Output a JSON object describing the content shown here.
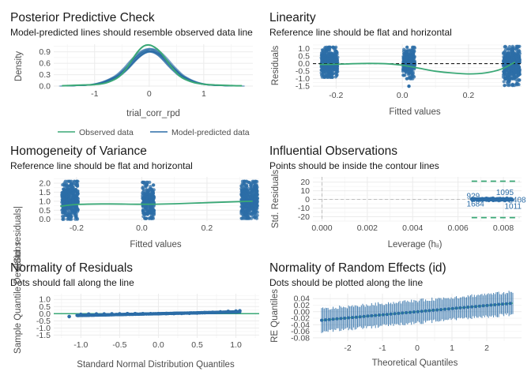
{
  "colors": {
    "blue": "#2c6da7",
    "green": "#3aa876",
    "grid": "#ebebeb",
    "text": "#4d4d4d",
    "contour": "#3aa876"
  },
  "chart_data": [
    {
      "id": "ppc",
      "type": "line",
      "title": "Posterior Predictive Check",
      "subtitle": "Model-predicted lines should resemble observed data line",
      "xlabel": "trial_corr_rpd",
      "ylabel": "Density",
      "xlim": [
        -1.75,
        1.9
      ],
      "ylim": [
        -0.02,
        1.1
      ],
      "xticks": [
        -1,
        0,
        1
      ],
      "yticks": [
        0.0,
        0.3,
        0.6,
        0.9
      ],
      "ytick_labels": [
        "0.0",
        "0.3",
        "0.6",
        "0.9"
      ],
      "grid": true,
      "legend_position": "bottom",
      "series": [
        {
          "name": "Observed data",
          "color": "#3aa876",
          "x": [
            -1.6,
            -1.4,
            -1.2,
            -1.0,
            -0.8,
            -0.6,
            -0.5,
            -0.4,
            -0.3,
            -0.2,
            -0.1,
            0.0,
            0.1,
            0.2,
            0.3,
            0.4,
            0.5,
            0.6,
            0.8,
            1.0,
            1.2,
            1.4,
            1.6,
            1.7
          ],
          "y": [
            0.01,
            0.02,
            0.03,
            0.04,
            0.08,
            0.2,
            0.32,
            0.5,
            0.72,
            0.92,
            1.05,
            1.08,
            1.02,
            0.9,
            0.72,
            0.52,
            0.35,
            0.22,
            0.1,
            0.05,
            0.03,
            0.02,
            0.01,
            0.01
          ]
        },
        {
          "name": "Model-predicted data",
          "color": "#2c6da7",
          "x": [
            -1.6,
            -1.4,
            -1.2,
            -1.0,
            -0.8,
            -0.6,
            -0.5,
            -0.4,
            -0.3,
            -0.2,
            -0.1,
            0.0,
            0.1,
            0.2,
            0.3,
            0.4,
            0.5,
            0.6,
            0.8,
            1.0,
            1.2,
            1.4,
            1.6,
            1.7
          ],
          "y": [
            0.0,
            0.01,
            0.02,
            0.05,
            0.12,
            0.25,
            0.36,
            0.5,
            0.66,
            0.8,
            0.9,
            0.94,
            0.91,
            0.82,
            0.68,
            0.52,
            0.38,
            0.26,
            0.12,
            0.05,
            0.02,
            0.01,
            0.0,
            0.0
          ]
        }
      ]
    },
    {
      "id": "linearity",
      "type": "scatter",
      "title": "Linearity",
      "subtitle": "Reference line should be flat and horizontal",
      "xlabel": "Fitted values",
      "ylabel": "Residuals",
      "xlim": [
        -0.27,
        0.36
      ],
      "ylim": [
        -1.65,
        1.3
      ],
      "xticks": [
        -0.2,
        0.0,
        0.2
      ],
      "xtick_labels": [
        "-0.2",
        "0.0",
        "0.2"
      ],
      "yticks": [
        -1.5,
        -1.0,
        -0.5,
        0.0,
        0.5,
        1.0
      ],
      "ytick_labels": [
        "-1.5",
        "-1.0",
        "-0.5",
        "0.0",
        "0.5",
        "1.0"
      ],
      "grid": true,
      "reference_y": 0,
      "clusters": [
        {
          "x": -0.22,
          "x_spread": 0.025,
          "y_min": -0.9,
          "y_max": 1.1,
          "n": 420
        },
        {
          "x": 0.02,
          "x_spread": 0.018,
          "y_min": -1.0,
          "y_max": 1.1,
          "n": 260
        },
        {
          "x": 0.33,
          "x_spread": 0.025,
          "y_min": -1.45,
          "y_max": 1.15,
          "n": 420
        }
      ],
      "outliers": [
        {
          "x": 0.02,
          "y": -1.5
        }
      ],
      "smooth": {
        "x": [
          -0.25,
          -0.2,
          -0.15,
          -0.1,
          -0.05,
          0.0,
          0.05,
          0.1,
          0.15,
          0.2,
          0.25,
          0.3,
          0.34
        ],
        "y": [
          -0.05,
          -0.04,
          0.0,
          0.02,
          0.0,
          -0.1,
          -0.3,
          -0.5,
          -0.62,
          -0.68,
          -0.62,
          -0.35,
          0.1
        ]
      }
    },
    {
      "id": "homogeneity",
      "type": "scatter",
      "title": "Homogeneity of Variance",
      "subtitle": "Reference line should be flat and horizontal",
      "xlabel": "Fitted values",
      "ylabel": "√|Std. residuals|",
      "xlim": [
        -0.27,
        0.36
      ],
      "ylim": [
        -0.1,
        2.35
      ],
      "xticks": [
        -0.2,
        0.0,
        0.2
      ],
      "xtick_labels": [
        "-0.2",
        "0.0",
        "0.2"
      ],
      "yticks": [
        0.0,
        0.5,
        1.0,
        1.5,
        2.0
      ],
      "ytick_labels": [
        "0.0",
        "0.5",
        "1.0",
        "1.5",
        "2.0"
      ],
      "grid": true,
      "clusters": [
        {
          "x": -0.22,
          "x_spread": 0.025,
          "y_min": 0.0,
          "y_max": 2.1,
          "n": 420
        },
        {
          "x": 0.02,
          "x_spread": 0.018,
          "y_min": 0.05,
          "y_max": 2.05,
          "n": 260
        },
        {
          "x": 0.33,
          "x_spread": 0.025,
          "y_min": 0.05,
          "y_max": 2.1,
          "n": 420
        }
      ],
      "outliers": [
        {
          "x": 0.32,
          "y": 0.25
        }
      ],
      "smooth": {
        "x": [
          -0.25,
          -0.2,
          -0.1,
          0.0,
          0.1,
          0.2,
          0.3,
          0.34
        ],
        "y": [
          0.72,
          0.82,
          0.85,
          0.83,
          0.86,
          0.92,
          0.98,
          1.0
        ]
      }
    },
    {
      "id": "influence",
      "type": "scatter",
      "title": "Influential Observations",
      "subtitle": "Points should be inside the contour lines",
      "xlabel": "Leverage (hᵢᵢ)",
      "ylabel": "Std. Residuals",
      "xlim": [
        -0.0004,
        0.0088
      ],
      "ylim": [
        -25,
        26
      ],
      "xticks": [
        0.0,
        0.002,
        0.004,
        0.006,
        0.008
      ],
      "xtick_labels": [
        "0.000",
        "0.002",
        "0.004",
        "0.006",
        "0.008"
      ],
      "yticks": [
        -20,
        -10,
        0,
        10,
        20
      ],
      "ytick_labels": [
        "-20",
        "-10",
        "0",
        "10",
        "20"
      ],
      "grid": true,
      "reference_y": 0,
      "reference_x": 0,
      "contour": {
        "x_start": 0.0066,
        "x_end": 0.0087,
        "y_upper": 21,
        "y_lower": -21
      },
      "points": [
        {
          "x": 0.0066,
          "y": 0.4
        },
        {
          "x": 0.0072,
          "y": 0.1
        },
        {
          "x": 0.0079,
          "y": 0.3
        },
        {
          "x": 0.0083,
          "y": 0.0
        }
      ],
      "labels": [
        {
          "text": "929",
          "x": 0.00638,
          "y": 3.7
        },
        {
          "text": "1095",
          "x": 0.00768,
          "y": 7.9
        },
        {
          "text": "1684",
          "x": 0.00638,
          "y": -5.4
        },
        {
          "text": "2408",
          "x": 0.00822,
          "y": -0.7
        },
        {
          "text": "1011",
          "x": 0.00805,
          "y": -8.3
        }
      ]
    },
    {
      "id": "normres",
      "type": "scatter",
      "title": "Normality of Residuals",
      "subtitle": "Dots should fall along the line",
      "xlabel": "Standard Normal Distribution Quantiles",
      "ylabel": "Sample Quantile Deviations",
      "xlim": [
        -1.35,
        1.3
      ],
      "ylim": [
        -1.7,
        1.4
      ],
      "xticks": [
        -1.0,
        -0.5,
        0.0,
        0.5,
        1.0
      ],
      "xtick_labels": [
        "-1.0",
        "-0.5",
        "0.0",
        "0.5",
        "1.0"
      ],
      "yticks": [
        -1.5,
        -1.0,
        -0.5,
        0.0,
        0.5,
        1.0
      ],
      "ytick_labels": [
        "-1.5",
        "-1.0",
        "-0.5",
        "0.0",
        "0.5",
        "1.0"
      ],
      "grid": true,
      "reference_y": 0,
      "points": {
        "x": [
          -1.15,
          -1.0,
          -0.9,
          -0.8,
          -0.7,
          -0.6,
          -0.5,
          -0.4,
          -0.3,
          -0.2,
          -0.1,
          0.0,
          0.1,
          0.2,
          0.3,
          0.4,
          0.5,
          0.6,
          0.7,
          0.8,
          0.9,
          1.0,
          1.05
        ],
        "y": [
          -0.2,
          -0.05,
          -0.03,
          -0.02,
          -0.02,
          -0.01,
          -0.01,
          0.0,
          0.0,
          0.0,
          0.0,
          0.0,
          0.01,
          0.01,
          0.02,
          0.03,
          0.05,
          0.07,
          0.09,
          0.12,
          0.16,
          0.18,
          0.2
        ]
      }
    },
    {
      "id": "normre",
      "type": "scatter",
      "title": "Normality of Random Effects (id)",
      "subtitle": "Dots should be plotted along the line",
      "xlabel": "Theoretical Quantiles",
      "ylabel": "RE Quantiles",
      "xlim": [
        -3.0,
        3.0
      ],
      "ylim": [
        -0.09,
        0.055
      ],
      "xticks": [
        -2,
        -1,
        0,
        1,
        2
      ],
      "xtick_labels": [
        "-2",
        "-1",
        "0",
        "1",
        "2"
      ],
      "yticks": [
        -0.08,
        -0.04,
        0.0,
        0.04
      ],
      "ytick_labels": [
        "-0.08",
        "-0.04",
        "0.00",
        "0.04"
      ],
      "yticks_minor": [
        -0.06,
        -0.02,
        0.02
      ],
      "ytick_minor_labels": [
        "-0.06",
        "-0.02",
        "0.02"
      ],
      "grid": true,
      "n_points": 150,
      "slope": 0.0095,
      "error_half_width": 0.034,
      "q_min": -2.75,
      "q_max": 2.75
    }
  ]
}
